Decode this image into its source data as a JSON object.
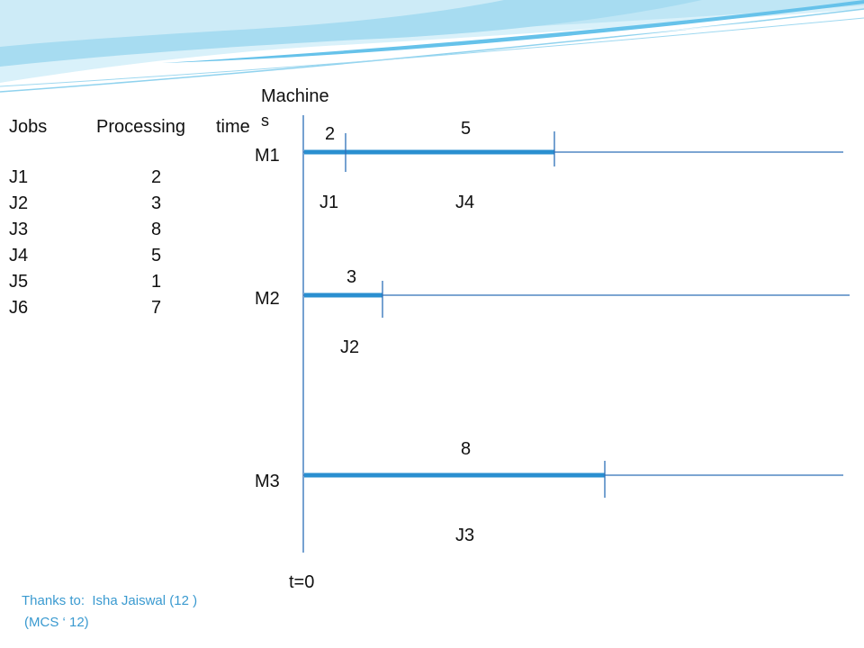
{
  "table": {
    "header_jobs": "Jobs",
    "header_processing": "Processing",
    "header_time": "time",
    "rows": [
      {
        "job": "J1",
        "time": "2"
      },
      {
        "job": "J2",
        "time": "3"
      },
      {
        "job": "J3",
        "time": "8"
      },
      {
        "job": "J4",
        "time": "5"
      },
      {
        "job": "J5",
        "time": "1"
      },
      {
        "job": "J6",
        "time": "7"
      }
    ]
  },
  "chart": {
    "machines_label_line1": "Machine",
    "machines_label_line2": "s",
    "origin_label": "t=0",
    "machines": [
      {
        "name": "M1",
        "segments": [
          {
            "job": "J1",
            "length": "2"
          },
          {
            "job": "J4",
            "length": "5"
          }
        ]
      },
      {
        "name": "M2",
        "segments": [
          {
            "job": "J2",
            "length": "3"
          }
        ]
      },
      {
        "name": "M3",
        "segments": [
          {
            "job": "J3",
            "length": "8"
          }
        ]
      }
    ]
  },
  "credit": {
    "line1": "Thanks to:  Isha Jaiswal (12 )",
    "line2": "(MCS ‘ 12)"
  },
  "colors": {
    "bar": "#2a8fd0",
    "line": "#2d6fb8",
    "wave_light": "#bfe6f5",
    "wave_mid": "#66c2ea",
    "credit_text": "#3a9ad0"
  }
}
